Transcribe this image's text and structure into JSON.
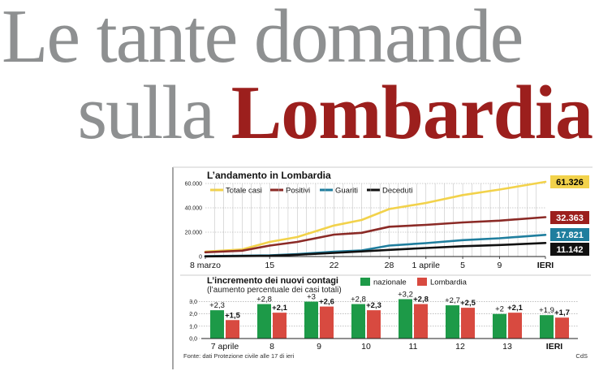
{
  "headline": {
    "line1": "Le tante domande",
    "line2_plain": "sulla ",
    "line2_accent": "Lombardia",
    "accent_color": "#9c1f1d",
    "grey_color": "#8e9091"
  },
  "chart_data": [
    {
      "type": "line",
      "title": "L’andamento in Lombardia",
      "x_labels": [
        "8 marzo",
        "15",
        "22",
        "28",
        "1 aprile",
        "5",
        "9",
        "IERI"
      ],
      "x_label_days": [
        0,
        7,
        14,
        20,
        24,
        28,
        32,
        37
      ],
      "y_ticks": [
        "60.000",
        "40.000",
        "20.000",
        "0"
      ],
      "y_tick_values": [
        60000,
        40000,
        20000,
        0
      ],
      "ylim": [
        0,
        60000
      ],
      "xlim": [
        0,
        37
      ],
      "legend_position": "top",
      "series": [
        {
          "name": "Totale casi",
          "color": "#f2d24b",
          "final_label": "61.326",
          "label_bg": "#f2d24b",
          "label_fg": "#000000",
          "values": [
            [
              0,
              4000
            ],
            [
              4,
              5800
            ],
            [
              7,
              12000
            ],
            [
              10,
              16000
            ],
            [
              14,
              25500
            ],
            [
              17,
              30000
            ],
            [
              20,
              39000
            ],
            [
              24,
              44000
            ],
            [
              28,
              50500
            ],
            [
              32,
              55000
            ],
            [
              37,
              61326
            ]
          ]
        },
        {
          "name": "Positivi",
          "color": "#8b2a26",
          "final_label": "32.363",
          "label_bg": "#9c1f1d",
          "label_fg": "#ffffff",
          "values": [
            [
              0,
              3500
            ],
            [
              4,
              4800
            ],
            [
              7,
              9000
            ],
            [
              10,
              12000
            ],
            [
              14,
              18000
            ],
            [
              17,
              19500
            ],
            [
              20,
              24500
            ],
            [
              24,
              26000
            ],
            [
              28,
              28000
            ],
            [
              32,
              29500
            ],
            [
              37,
              32363
            ]
          ]
        },
        {
          "name": "Guariti",
          "color": "#1f7e9e",
          "final_label": "17.821",
          "label_bg": "#1f7e9e",
          "label_fg": "#ffffff",
          "values": [
            [
              0,
              300
            ],
            [
              7,
              1000
            ],
            [
              10,
              2000
            ],
            [
              14,
              4000
            ],
            [
              17,
              5000
            ],
            [
              20,
              9000
            ],
            [
              24,
              11000
            ],
            [
              28,
              13500
            ],
            [
              32,
              15000
            ],
            [
              37,
              17821
            ]
          ]
        },
        {
          "name": "Deceduti",
          "color": "#111111",
          "final_label": "11.142",
          "label_bg": "#111111",
          "label_fg": "#ffffff",
          "values": [
            [
              0,
              150
            ],
            [
              7,
              600
            ],
            [
              10,
              1500
            ],
            [
              14,
              3000
            ],
            [
              17,
              4200
            ],
            [
              20,
              5500
            ],
            [
              24,
              7000
            ],
            [
              28,
              8500
            ],
            [
              32,
              9500
            ],
            [
              37,
              11142
            ]
          ]
        }
      ]
    },
    {
      "type": "bar",
      "title": "L’incremento dei nuovi contagi",
      "subtitle": "(l’aumento percentuale dei casi totali)",
      "categories": [
        "7 aprile",
        "8",
        "9",
        "10",
        "11",
        "12",
        "13",
        "IERI"
      ],
      "y_ticks": [
        "3,0",
        "2,0",
        "1,0",
        "0,0"
      ],
      "y_tick_values": [
        3,
        2,
        1,
        0
      ],
      "ylim": [
        0,
        3.2
      ],
      "legend_position": "top-right",
      "series": [
        {
          "name": "nazionale",
          "color": "#1d9a48",
          "values": [
            2.3,
            2.8,
            3.0,
            2.8,
            3.2,
            2.7,
            2.0,
            1.9
          ],
          "labels": [
            "+2,3",
            "+2,8",
            "+3",
            "+2,8",
            "+3,2",
            "+2,7",
            "+2",
            "+1,9"
          ]
        },
        {
          "name": "Lombardia",
          "color": "#d84a40",
          "values": [
            1.5,
            2.1,
            2.6,
            2.3,
            2.8,
            2.5,
            2.1,
            1.7
          ],
          "labels": [
            "+1,5",
            "+2,1",
            "+2,6",
            "+2,3",
            "+2,8",
            "+2,5",
            "+2,1",
            "+1,7"
          ]
        }
      ]
    }
  ],
  "footer": {
    "source": "Fonte: dati Protezione civile alle 17 di ieri",
    "credit": "CdS"
  }
}
